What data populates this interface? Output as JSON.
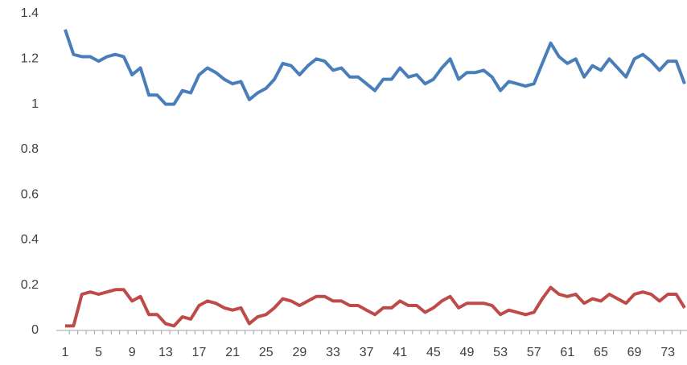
{
  "chart_data": {
    "type": "line",
    "categories": [
      1,
      null,
      null,
      null,
      5,
      null,
      null,
      null,
      9,
      null,
      null,
      null,
      13,
      null,
      null,
      null,
      17,
      null,
      null,
      null,
      21,
      null,
      null,
      null,
      25,
      null,
      null,
      null,
      29,
      null,
      null,
      null,
      33,
      null,
      null,
      null,
      37,
      null,
      null,
      null,
      41,
      null,
      null,
      null,
      45,
      null,
      null,
      null,
      49,
      null,
      null,
      null,
      53,
      null,
      null,
      null,
      57,
      null,
      null,
      null,
      61,
      null,
      null,
      null,
      65,
      null,
      null,
      null,
      69,
      null,
      null,
      null,
      73,
      null,
      null
    ],
    "series": [
      {
        "color": "#4a7ebb",
        "values": [
          1.33,
          1.22,
          1.21,
          1.21,
          1.19,
          1.21,
          1.22,
          1.21,
          1.13,
          1.16,
          1.04,
          1.04,
          1.0,
          1.0,
          1.06,
          1.05,
          1.13,
          1.16,
          1.14,
          1.11,
          1.09,
          1.1,
          1.02,
          1.05,
          1.07,
          1.11,
          1.18,
          1.17,
          1.13,
          1.17,
          1.2,
          1.19,
          1.15,
          1.16,
          1.12,
          1.12,
          1.09,
          1.06,
          1.11,
          1.11,
          1.16,
          1.12,
          1.13,
          1.09,
          1.11,
          1.16,
          1.2,
          1.11,
          1.14,
          1.14,
          1.15,
          1.12,
          1.06,
          1.1,
          1.09,
          1.08,
          1.09,
          1.18,
          1.27,
          1.21,
          1.18,
          1.2,
          1.12,
          1.17,
          1.15,
          1.2,
          1.16,
          1.12,
          1.2,
          1.22,
          1.19,
          1.15,
          1.19,
          1.19,
          1.09
        ]
      },
      {
        "color": "#be4b48",
        "values": [
          0.02,
          0.02,
          0.16,
          0.17,
          0.16,
          0.17,
          0.18,
          0.18,
          0.13,
          0.15,
          0.07,
          0.07,
          0.03,
          0.02,
          0.06,
          0.05,
          0.11,
          0.13,
          0.12,
          0.1,
          0.09,
          0.1,
          0.03,
          0.06,
          0.07,
          0.1,
          0.14,
          0.13,
          0.11,
          0.13,
          0.15,
          0.15,
          0.13,
          0.13,
          0.11,
          0.11,
          0.09,
          0.07,
          0.1,
          0.1,
          0.13,
          0.11,
          0.11,
          0.08,
          0.1,
          0.13,
          0.15,
          0.1,
          0.12,
          0.12,
          0.12,
          0.11,
          0.07,
          0.09,
          0.08,
          0.07,
          0.08,
          0.14,
          0.19,
          0.16,
          0.15,
          0.16,
          0.12,
          0.14,
          0.13,
          0.16,
          0.14,
          0.12,
          0.16,
          0.17,
          0.16,
          0.13,
          0.16,
          0.16,
          0.1
        ]
      }
    ],
    "ylim": [
      0,
      1.4
    ],
    "yticks": [
      0,
      0.2,
      0.4,
      0.6,
      0.8,
      1,
      1.2,
      1.4
    ],
    "grid": false
  }
}
